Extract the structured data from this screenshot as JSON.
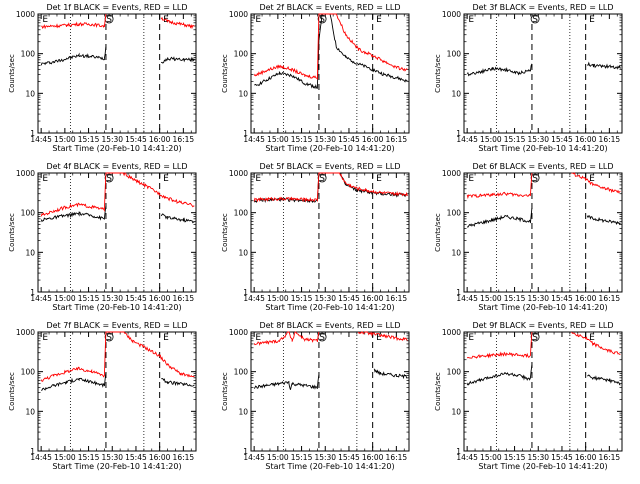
{
  "x_tick_labels": [
    "14:45",
    "15:00",
    "15:15",
    "15:30",
    "15:45",
    "16:00",
    "16:15"
  ],
  "y_tick_labels": [
    "1",
    "10",
    "100",
    "1000"
  ],
  "chart_data": [
    {
      "type": "line",
      "title": "Det 1f BLACK = Events, RED = LLD",
      "xlabel": "Start Time (20-Feb-10 14:41:20)",
      "ylabel": "Counts/sec",
      "x_range_minutes": [
        -2,
        98
      ],
      "ylim": [
        1,
        1000
      ],
      "yscale": "log",
      "grid": false,
      "vertical_markers": {
        "dotted": [
          18.5,
          65
        ],
        "dashed": [
          41,
          75
        ]
      },
      "markers": [
        {
          "label": "E",
          "x": 0
        },
        {
          "label": "S",
          "x": 43
        },
        {
          "label": "E",
          "x": 79
        }
      ],
      "series": [
        {
          "color": "#000000",
          "x": [
            0,
            8,
            16,
            24,
            32,
            40,
            41,
            42,
            44,
            60,
            75,
            76,
            80,
            90,
            97
          ],
          "y": [
            55,
            62,
            75,
            90,
            85,
            75,
            150,
            null,
            null,
            null,
            null,
            60,
            75,
            72,
            70
          ]
        },
        {
          "color": "#ff0000",
          "x": [
            0,
            8,
            16,
            24,
            32,
            40,
            41,
            42,
            44,
            60,
            75,
            76,
            80,
            90,
            97
          ],
          "y": [
            480,
            500,
            520,
            560,
            550,
            500,
            1000,
            null,
            null,
            null,
            null,
            800,
            650,
            540,
            470
          ]
        }
      ]
    },
    {
      "type": "line",
      "title": "Det 2f BLACK = Events, RED = LLD",
      "xlabel": "Start Time (20-Feb-10 14:41:20)",
      "ylabel": "Counts/sec",
      "x_range_minutes": [
        -2,
        98
      ],
      "ylim": [
        1,
        1000
      ],
      "yscale": "log",
      "grid": false,
      "vertical_markers": {
        "dotted": [
          18.5,
          65
        ],
        "dashed": [
          41,
          75
        ]
      },
      "markers": [
        {
          "label": "E",
          "x": 0
        },
        {
          "label": "S",
          "x": 43
        },
        {
          "label": "E",
          "x": 79
        }
      ],
      "series": [
        {
          "color": "#000000",
          "x": [
            0,
            8,
            16,
            24,
            32,
            40,
            41,
            43,
            48,
            52,
            58,
            66,
            75,
            82,
            90,
            97
          ],
          "y": [
            15,
            22,
            32,
            28,
            18,
            14,
            200,
            1000,
            1000,
            150,
            80,
            55,
            40,
            30,
            25,
            20
          ]
        },
        {
          "color": "#ff0000",
          "x": [
            0,
            8,
            16,
            24,
            32,
            40,
            41,
            43,
            48,
            52,
            58,
            66,
            75,
            82,
            90,
            97
          ],
          "y": [
            28,
            38,
            48,
            40,
            28,
            25,
            1000,
            1000,
            1000,
            1000,
            300,
            130,
            90,
            65,
            45,
            38
          ]
        }
      ]
    },
    {
      "type": "line",
      "title": "Det 3f BLACK = Events, RED = LLD",
      "xlabel": "Start Time (20-Feb-10 14:41:20)",
      "ylabel": "Counts/sec",
      "x_range_minutes": [
        -2,
        98
      ],
      "ylim": [
        1,
        1000
      ],
      "yscale": "log",
      "grid": false,
      "vertical_markers": {
        "dotted": [
          18.5,
          65
        ],
        "dashed": [
          41,
          75
        ]
      },
      "markers": [
        {
          "label": "E",
          "x": 0
        },
        {
          "label": "S",
          "x": 43
        },
        {
          "label": "E",
          "x": 79
        }
      ],
      "series": [
        {
          "color": "#000000",
          "x": [
            0,
            8,
            16,
            24,
            32,
            40,
            41,
            42,
            76,
            80,
            88,
            97
          ],
          "y": [
            30,
            35,
            42,
            40,
            32,
            38,
            60,
            null,
            55,
            50,
            48,
            45
          ]
        }
      ]
    },
    {
      "type": "line",
      "title": "Det 4f BLACK = Events, RED = LLD",
      "xlabel": "Start Time (20-Feb-10 14:41:20)",
      "ylabel": "Counts/sec",
      "x_range_minutes": [
        -2,
        98
      ],
      "ylim": [
        1,
        1000
      ],
      "yscale": "log",
      "grid": false,
      "vertical_markers": {
        "dotted": [
          18.5,
          65
        ],
        "dashed": [
          41,
          75
        ]
      },
      "markers": [
        {
          "label": "E",
          "x": 0
        },
        {
          "label": "S",
          "x": 43
        },
        {
          "label": "E",
          "x": 79
        }
      ],
      "series": [
        {
          "color": "#000000",
          "x": [
            0,
            8,
            16,
            24,
            32,
            40,
            41,
            42,
            44,
            60,
            75,
            76,
            80,
            90,
            97
          ],
          "y": [
            65,
            75,
            85,
            95,
            85,
            70,
            150,
            null,
            null,
            null,
            null,
            90,
            75,
            65,
            60
          ]
        },
        {
          "color": "#ff0000",
          "x": [
            0,
            8,
            16,
            24,
            32,
            40,
            41,
            43,
            48,
            52,
            58,
            66,
            75,
            78,
            86,
            97
          ],
          "y": [
            85,
            110,
            140,
            160,
            140,
            120,
            1000,
            1000,
            1000,
            1000,
            700,
            480,
            300,
            250,
            190,
            150
          ]
        }
      ]
    },
    {
      "type": "line",
      "title": "Det 5f BLACK = Events, RED = LLD",
      "xlabel": "Start Time (20-Feb-10 14:41:20)",
      "ylabel": "Counts/sec",
      "x_range_minutes": [
        -2,
        98
      ],
      "ylim": [
        1,
        1000
      ],
      "yscale": "log",
      "grid": false,
      "vertical_markers": {
        "dotted": [
          18.5,
          65
        ],
        "dashed": [
          41,
          75
        ]
      },
      "markers": [
        {
          "label": "E",
          "x": 0
        },
        {
          "label": "S",
          "x": 43
        },
        {
          "label": "E",
          "x": 79
        }
      ],
      "series": [
        {
          "color": "#000000",
          "x": [
            0,
            8,
            16,
            24,
            32,
            40,
            41,
            43,
            50,
            54,
            58,
            64,
            72,
            80,
            88,
            97
          ],
          "y": [
            200,
            210,
            215,
            210,
            205,
            200,
            1000,
            1000,
            1000,
            1000,
            500,
            380,
            330,
            300,
            290,
            280
          ]
        },
        {
          "color": "#ff0000",
          "x": [
            0,
            8,
            16,
            24,
            32,
            40,
            41,
            43,
            50,
            54,
            58,
            64,
            72,
            80,
            88,
            97
          ],
          "y": [
            210,
            220,
            225,
            220,
            215,
            210,
            1000,
            1000,
            1000,
            1000,
            550,
            420,
            360,
            320,
            300,
            290
          ]
        }
      ]
    },
    {
      "type": "line",
      "title": "Det 6f BLACK = Events, RED = LLD",
      "xlabel": "Start Time (20-Feb-10 14:41:20)",
      "ylabel": "Counts/sec",
      "x_range_minutes": [
        -2,
        98
      ],
      "ylim": [
        1,
        1000
      ],
      "yscale": "log",
      "grid": false,
      "vertical_markers": {
        "dotted": [
          18.5,
          65
        ],
        "dashed": [
          41,
          75
        ]
      },
      "markers": [
        {
          "label": "E",
          "x": 0
        },
        {
          "label": "S",
          "x": 43
        },
        {
          "label": "E",
          "x": 79
        }
      ],
      "series": [
        {
          "color": "#000000",
          "x": [
            0,
            8,
            16,
            24,
            32,
            40,
            41,
            42,
            44,
            60,
            75,
            76,
            80,
            90,
            97
          ],
          "y": [
            45,
            55,
            65,
            80,
            70,
            60,
            120,
            null,
            null,
            null,
            null,
            80,
            70,
            60,
            55
          ]
        },
        {
          "color": "#ff0000",
          "x": [
            0,
            8,
            16,
            24,
            32,
            40,
            41,
            42,
            44,
            60,
            66,
            75,
            80,
            88,
            97
          ],
          "y": [
            260,
            270,
            285,
            300,
            280,
            270,
            1000,
            null,
            null,
            null,
            1000,
            700,
            500,
            400,
            320
          ]
        }
      ]
    },
    {
      "type": "line",
      "title": "Det 7f BLACK = Events, RED = LLD",
      "xlabel": "Start Time (20-Feb-10 14:41:20)",
      "ylabel": "Counts/sec",
      "x_range_minutes": [
        -2,
        98
      ],
      "ylim": [
        1,
        1000
      ],
      "yscale": "log",
      "grid": false,
      "vertical_markers": {
        "dotted": [
          18.5,
          65
        ],
        "dashed": [
          41,
          75
        ]
      },
      "markers": [
        {
          "label": "E",
          "x": 0
        },
        {
          "label": "S",
          "x": 43
        },
        {
          "label": "E",
          "x": 79
        }
      ],
      "series": [
        {
          "color": "#000000",
          "x": [
            0,
            8,
            16,
            24,
            32,
            40,
            41,
            42,
            44,
            60,
            75,
            76,
            80,
            90,
            97
          ],
          "y": [
            35,
            45,
            55,
            65,
            55,
            45,
            100,
            null,
            null,
            null,
            null,
            65,
            55,
            48,
            45
          ]
        },
        {
          "color": "#ff0000",
          "x": [
            0,
            8,
            16,
            24,
            32,
            40,
            41,
            43,
            48,
            52,
            58,
            66,
            75,
            80,
            88,
            97
          ],
          "y": [
            60,
            80,
            100,
            120,
            100,
            80,
            1000,
            1000,
            1000,
            1000,
            600,
            400,
            250,
            150,
            90,
            70
          ]
        }
      ]
    },
    {
      "type": "line",
      "title": "Det 8f BLACK = Events, RED = LLD",
      "xlabel": "Start Time (20-Feb-10 14:41:20)",
      "ylabel": "Counts/sec",
      "x_range_minutes": [
        -2,
        98
      ],
      "ylim": [
        1,
        1000
      ],
      "yscale": "log",
      "grid": false,
      "vertical_markers": {
        "dotted": [
          18.5,
          65
        ],
        "dashed": [
          41,
          75
        ]
      },
      "markers": [
        {
          "label": "E",
          "x": 0
        },
        {
          "label": "S",
          "x": 43
        },
        {
          "label": "E",
          "x": 79
        }
      ],
      "series": [
        {
          "color": "#000000",
          "x": [
            0,
            8,
            16,
            22,
            23,
            24,
            32,
            40,
            41,
            42,
            44,
            60,
            75,
            76,
            80,
            90,
            97
          ],
          "y": [
            40,
            45,
            50,
            55,
            35,
            50,
            45,
            40,
            90,
            null,
            null,
            null,
            null,
            110,
            90,
            80,
            75
          ]
        },
        {
          "color": "#ff0000",
          "x": [
            0,
            8,
            16,
            22,
            24,
            26,
            32,
            40,
            41,
            42,
            44,
            60,
            66,
            75,
            82,
            90,
            97
          ],
          "y": [
            500,
            550,
            600,
            1000,
            600,
            1000,
            650,
            600,
            1000,
            null,
            null,
            null,
            1000,
            900,
            800,
            700,
            650
          ]
        }
      ]
    },
    {
      "type": "line",
      "title": "Det 9f BLACK = Events, RED = LLD",
      "xlabel": "Start Time (20-Feb-10 14:41:20)",
      "ylabel": "Counts/sec",
      "x_range_minutes": [
        -2,
        98
      ],
      "ylim": [
        1,
        1000
      ],
      "yscale": "log",
      "grid": false,
      "vertical_markers": {
        "dotted": [
          18.5,
          65
        ],
        "dashed": [
          41,
          75
        ]
      },
      "markers": [
        {
          "label": "E",
          "x": 0
        },
        {
          "label": "S",
          "x": 43
        },
        {
          "label": "E",
          "x": 79
        }
      ],
      "series": [
        {
          "color": "#000000",
          "x": [
            0,
            8,
            16,
            24,
            32,
            40,
            41,
            42,
            44,
            60,
            75,
            76,
            80,
            90,
            97
          ],
          "y": [
            50,
            60,
            75,
            90,
            80,
            65,
            140,
            null,
            null,
            null,
            null,
            80,
            70,
            60,
            50
          ]
        },
        {
          "color": "#ff0000",
          "x": [
            0,
            8,
            16,
            24,
            32,
            40,
            41,
            42,
            44,
            60,
            66,
            75,
            80,
            88,
            97
          ],
          "y": [
            230,
            245,
            260,
            280,
            265,
            250,
            1000,
            null,
            null,
            null,
            1000,
            700,
            500,
            350,
            280
          ]
        }
      ]
    }
  ]
}
